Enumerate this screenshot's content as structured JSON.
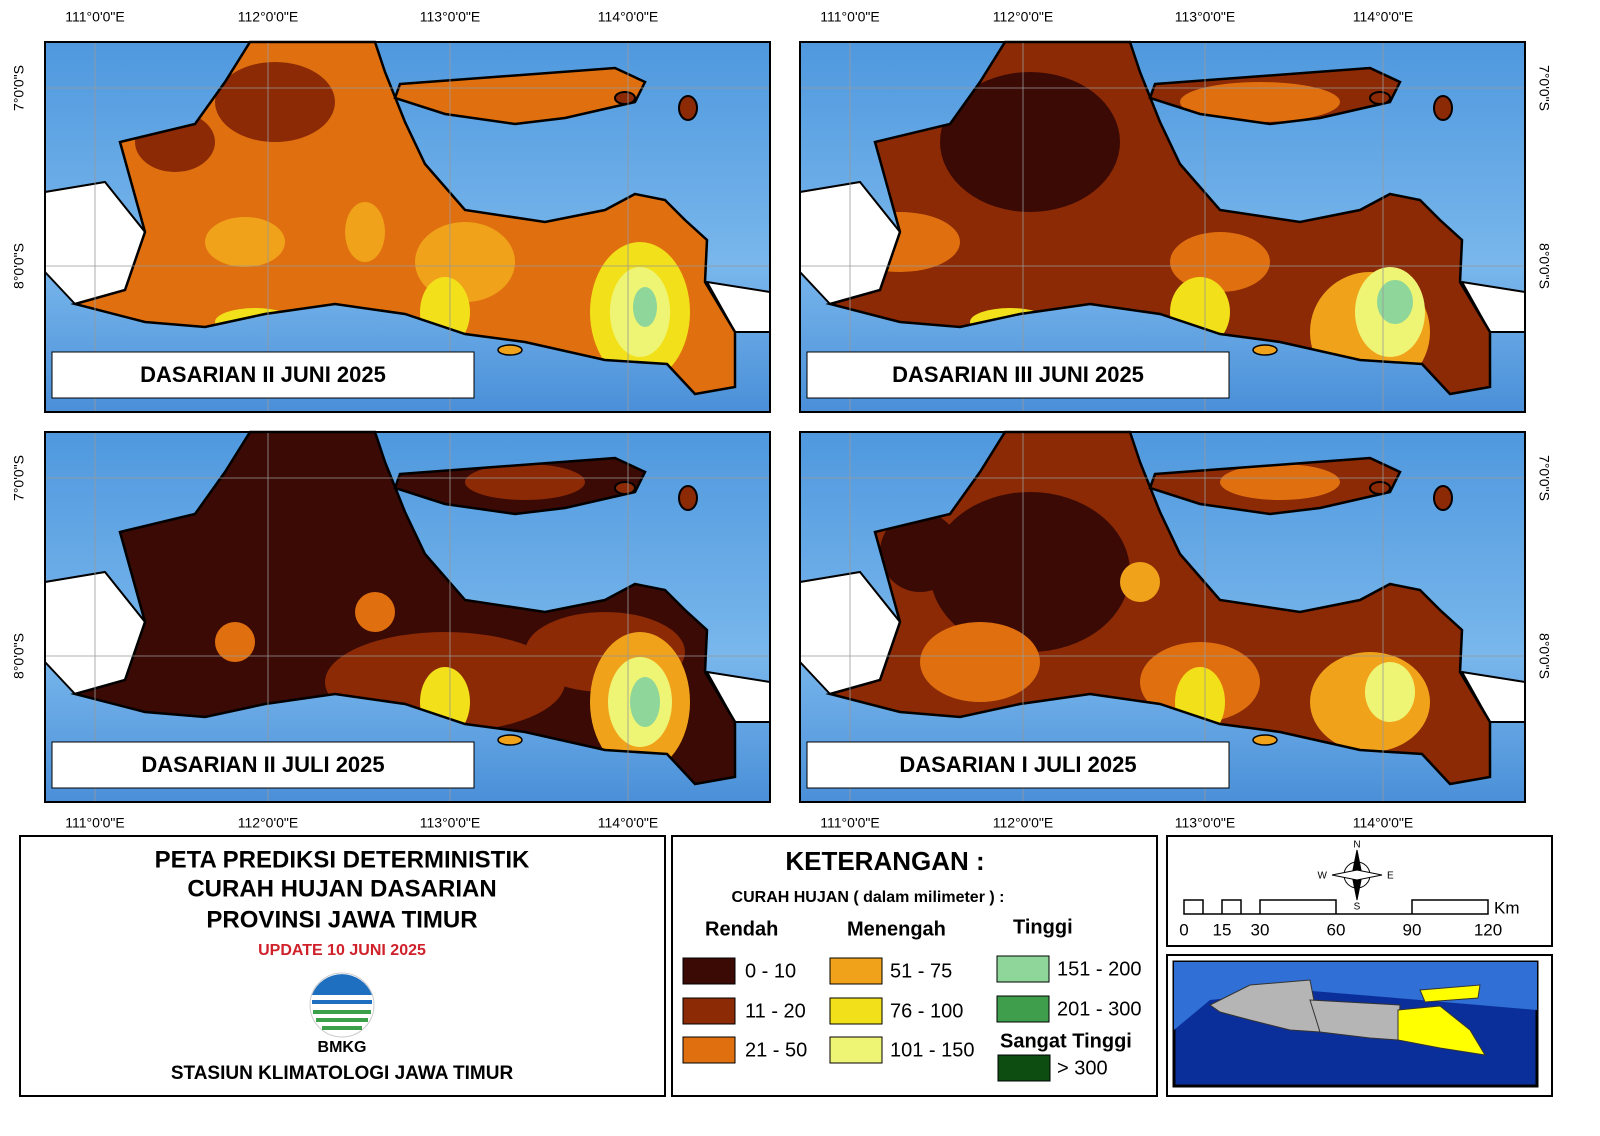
{
  "panels": [
    {
      "label": "DASARIAN II JUNI 2025"
    },
    {
      "label": "DASARIAN III JUNI 2025"
    },
    {
      "label": "DASARIAN II JULI 2025"
    },
    {
      "label": "DASARIAN I JULI 2025"
    }
  ],
  "axes": {
    "longitudes": [
      "111°0'0\"E",
      "112°0'0\"E",
      "113°0'0\"E",
      "114°0'0\"E"
    ],
    "latitudes": [
      "7°0'0\"S",
      "8°0'0\"S"
    ]
  },
  "title": {
    "lines": [
      "PETA PREDIKSI DETERMINISTIK",
      "CURAH HUJAN DASARIAN",
      "PROVINSI JAWA TIMUR"
    ],
    "update": "UPDATE 10 JUNI 2025",
    "logo": "BMKG",
    "station": "STASIUN KLIMATOLOGI JAWA TIMUR"
  },
  "legend": {
    "heading": "KETERANGAN :",
    "subheading": "CURAH HUJAN ( dalam milimeter ) :",
    "groups": [
      {
        "name": "Rendah",
        "items": [
          {
            "label": "0 - 10",
            "color": "#3b0a04"
          },
          {
            "label": "11 - 20",
            "color": "#8b2a05"
          },
          {
            "label": "21 - 50",
            "color": "#e0700f"
          }
        ]
      },
      {
        "name": "Menengah",
        "items": [
          {
            "label": "51 - 75",
            "color": "#f0a21a"
          },
          {
            "label": "76 - 100",
            "color": "#f2e01a"
          },
          {
            "label": "101 - 150",
            "color": "#eef574"
          }
        ]
      },
      {
        "name": "Tinggi",
        "items": [
          {
            "label": "151 - 200",
            "color": "#8ed69a"
          },
          {
            "label": "201 - 300",
            "color": "#3e9e4c"
          }
        ]
      },
      {
        "name": "Sangat Tinggi",
        "items": [
          {
            "label": "> 300",
            "color": "#0d4d12"
          }
        ]
      }
    ]
  },
  "scale": {
    "ticks": [
      "0",
      "15",
      "30",
      "60",
      "90",
      "120"
    ],
    "unit": "Km"
  },
  "compass": {
    "n": "N",
    "e": "E",
    "s": "S",
    "w": "W"
  }
}
